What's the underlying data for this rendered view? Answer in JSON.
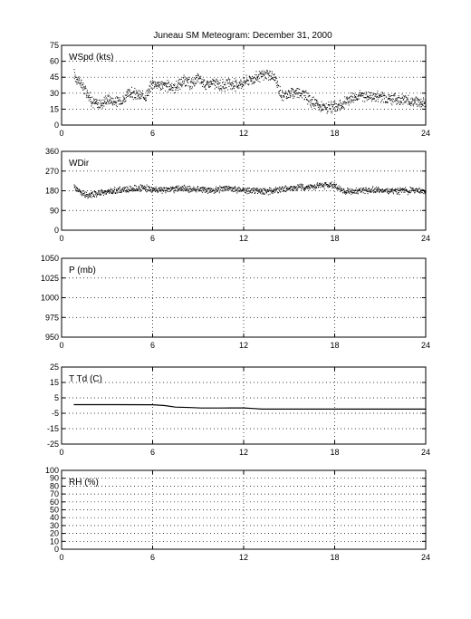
{
  "figure": {
    "title": "Juneau SM Meteogram:   December 31, 2000"
  },
  "chart_data": [
    {
      "type": "scatter",
      "label": "WSpd (kts)",
      "xlim": [
        0,
        24
      ],
      "ylim": [
        0,
        75
      ],
      "xticks": [
        0,
        6,
        12,
        18,
        24
      ],
      "yticks": [
        0,
        15,
        30,
        45,
        60,
        75
      ],
      "grid": true,
      "series": [
        {
          "color": "#000000",
          "x": [
            0.8,
            1.2,
            1.6,
            2.0,
            2.5,
            3.0,
            3.5,
            4.0,
            4.5,
            5.0,
            5.5,
            6.0,
            6.5,
            7.0,
            7.5,
            8.0,
            8.5,
            9.0,
            9.5,
            10.0,
            10.5,
            11.0,
            11.5,
            12.0,
            12.5,
            13.0,
            13.5,
            14.0,
            14.5,
            15.0,
            15.5,
            16.0,
            16.5,
            17.0,
            17.5,
            18.0,
            18.5,
            19.0,
            19.5,
            20.0,
            20.5,
            21.0,
            21.5,
            22.0,
            22.5,
            23.0,
            23.5,
            24.0
          ],
          "y": [
            48,
            40,
            33,
            22,
            20,
            25,
            22,
            24,
            31,
            28,
            27,
            40,
            38,
            37,
            36,
            42,
            39,
            44,
            38,
            40,
            37,
            39,
            38,
            41,
            44,
            46,
            48,
            45,
            28,
            30,
            32,
            29,
            22,
            18,
            16,
            17,
            20,
            26,
            28,
            28,
            27,
            28,
            26,
            25,
            24,
            23,
            22,
            21
          ]
        }
      ]
    },
    {
      "type": "scatter",
      "label": "WDir",
      "xlim": [
        0,
        24
      ],
      "ylim": [
        0,
        360
      ],
      "xticks": [
        0,
        6,
        12,
        18,
        24
      ],
      "yticks": [
        0,
        90,
        180,
        270,
        360
      ],
      "grid": true,
      "series": [
        {
          "color": "#000000",
          "x": [
            0.8,
            1.2,
            1.6,
            2.0,
            2.5,
            3.0,
            3.5,
            4.0,
            4.5,
            5.0,
            5.5,
            6.0,
            6.5,
            7.0,
            7.5,
            8.0,
            8.5,
            9.0,
            9.5,
            10.0,
            10.5,
            11.0,
            11.5,
            12.0,
            12.5,
            13.0,
            13.5,
            14.0,
            14.5,
            15.0,
            15.5,
            16.0,
            16.5,
            17.0,
            17.5,
            18.0,
            18.5,
            19.0,
            19.5,
            20.0,
            20.5,
            21.0,
            21.5,
            22.0,
            22.5,
            23.0,
            23.5,
            24.0
          ],
          "y": [
            200,
            175,
            160,
            165,
            172,
            178,
            182,
            186,
            190,
            195,
            192,
            188,
            185,
            187,
            190,
            192,
            188,
            190,
            187,
            185,
            190,
            192,
            188,
            186,
            183,
            181,
            180,
            183,
            188,
            192,
            197,
            200,
            202,
            205,
            208,
            210,
            180,
            178,
            182,
            185,
            186,
            184,
            182,
            180,
            181,
            183,
            182,
            180
          ]
        }
      ]
    },
    {
      "type": "line",
      "label": "P (mb)",
      "xlim": [
        0,
        24
      ],
      "ylim": [
        950,
        1050
      ],
      "xticks": [
        0,
        6,
        12,
        18,
        24
      ],
      "yticks": [
        950,
        975,
        1000,
        1025,
        1050
      ],
      "grid": true,
      "series": []
    },
    {
      "type": "line",
      "label": "T Td (C)",
      "xlim": [
        0,
        24
      ],
      "ylim": [
        -25,
        25
      ],
      "xticks": [
        0,
        6,
        12,
        18,
        24
      ],
      "yticks": [
        -25,
        -15,
        -5,
        5,
        15,
        25
      ],
      "grid": true,
      "series": [
        {
          "color": "#000000",
          "x": [
            0.8,
            3.0,
            6.0,
            6.8,
            7.5,
            8.5,
            9.2,
            10.5,
            12.0,
            12.6,
            13.2,
            15.0,
            18.0,
            21.0,
            24.0
          ],
          "y": [
            0.6,
            0.6,
            0.5,
            0.0,
            -1.0,
            -1.3,
            -1.6,
            -1.6,
            -1.5,
            -1.9,
            -2.3,
            -2.3,
            -2.3,
            -2.3,
            -2.3
          ]
        }
      ]
    },
    {
      "type": "line",
      "label": "RH (%)",
      "xlim": [
        0,
        24
      ],
      "ylim": [
        0,
        100
      ],
      "xticks": [
        0,
        6,
        12,
        18,
        24
      ],
      "yticks": [
        0,
        10,
        20,
        30,
        40,
        50,
        60,
        70,
        80,
        90,
        100
      ],
      "grid": true,
      "series": []
    }
  ]
}
